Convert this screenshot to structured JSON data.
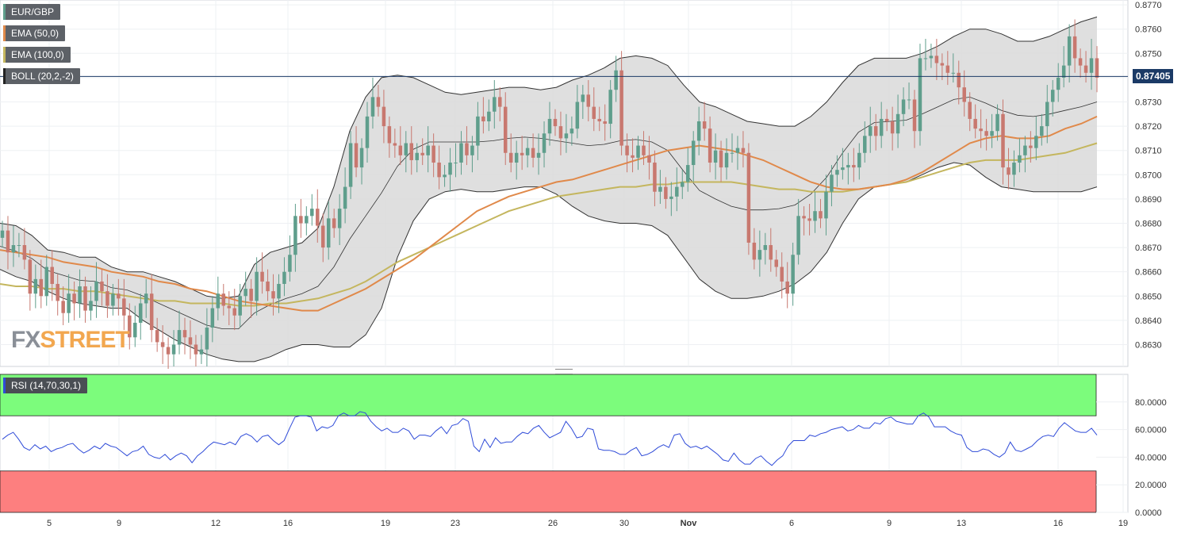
{
  "legend": {
    "symbol": "EUR/GBP",
    "ema50": "EMA (50,0)",
    "ema100": "EMA (100,0)",
    "boll": "BOLL (20,2,-2)",
    "rsi": "RSI (14,70,30,1)"
  },
  "colors": {
    "up": "#5f9e8c",
    "down": "#c8786f",
    "ema50": "#e0894a",
    "ema100": "#c4b65e",
    "boll_fill": "#d9d9d9",
    "rsi_line": "#2f4bd8",
    "rsi_overbought": "#7cfc7c",
    "rsi_oversold": "#fd7f7f",
    "price_badge": "#1b3a66"
  },
  "logo": {
    "part1": "FX",
    "part2": "STREET"
  },
  "chart_data": [
    {
      "type": "candlestick",
      "title": "EUR/GBP",
      "ylim": [
        0.8621,
        0.8772
      ],
      "y_ticks": [
        "0.8630",
        "0.8640",
        "0.8650",
        "0.8660",
        "0.8670",
        "0.8680",
        "0.8690",
        "0.8700",
        "0.8710",
        "0.8720",
        "0.8730",
        "0.8740",
        "0.8750",
        "0.8760",
        "0.8770"
      ],
      "x_ticks": [
        "5",
        "9",
        "12",
        "16",
        "19",
        "23",
        "26",
        "30",
        "Nov",
        "6",
        "9",
        "13",
        "16",
        "19"
      ],
      "current_price": "0.87405",
      "closes": [
        0.8677,
        0.8668,
        0.8671,
        0.8671,
        0.8665,
        0.8651,
        0.8657,
        0.865,
        0.8662,
        0.8655,
        0.8648,
        0.8643,
        0.8651,
        0.8647,
        0.8654,
        0.8644,
        0.8648,
        0.8656,
        0.8652,
        0.8646,
        0.8651,
        0.8649,
        0.8642,
        0.8633,
        0.8639,
        0.8647,
        0.8651,
        0.8636,
        0.8631,
        0.8629,
        0.8626,
        0.863,
        0.8636,
        0.8633,
        0.863,
        0.8626,
        0.8628,
        0.8637,
        0.8645,
        0.8651,
        0.8646,
        0.8645,
        0.8642,
        0.865,
        0.8653,
        0.8648,
        0.866,
        0.8656,
        0.8652,
        0.8649,
        0.8655,
        0.866,
        0.8667,
        0.8683,
        0.868,
        0.8683,
        0.8686,
        0.8679,
        0.867,
        0.8682,
        0.8678,
        0.8686,
        0.8695,
        0.8713,
        0.8703,
        0.8711,
        0.8724,
        0.8732,
        0.8728,
        0.872,
        0.8713,
        0.8712,
        0.8708,
        0.8713,
        0.8706,
        0.8709,
        0.8708,
        0.8712,
        0.8705,
        0.8699,
        0.87,
        0.8705,
        0.8705,
        0.8713,
        0.8708,
        0.8712,
        0.8724,
        0.8722,
        0.8726,
        0.8732,
        0.8728,
        0.8709,
        0.8705,
        0.8709,
        0.8708,
        0.8711,
        0.8707,
        0.8709,
        0.8717,
        0.8723,
        0.872,
        0.8715,
        0.8717,
        0.8719,
        0.873,
        0.8733,
        0.8728,
        0.8723,
        0.8722,
        0.8721,
        0.8735,
        0.8743,
        0.8712,
        0.8708,
        0.8707,
        0.8712,
        0.8708,
        0.8705,
        0.8693,
        0.8695,
        0.869,
        0.8691,
        0.8695,
        0.8697,
        0.8704,
        0.8714,
        0.8722,
        0.8719,
        0.8705,
        0.871,
        0.8703,
        0.8709,
        0.8709,
        0.8711,
        0.8709,
        0.8672,
        0.8665,
        0.8669,
        0.8671,
        0.8665,
        0.8662,
        0.8656,
        0.8651,
        0.8667,
        0.8683,
        0.8682,
        0.8681,
        0.8685,
        0.8682,
        0.8693,
        0.87,
        0.8702,
        0.8703,
        0.8704,
        0.8703,
        0.8709,
        0.8716,
        0.872,
        0.8716,
        0.8723,
        0.8722,
        0.8717,
        0.8725,
        0.8731,
        0.8731,
        0.8718,
        0.8748,
        0.8748,
        0.8749,
        0.8746,
        0.8745,
        0.8742,
        0.8742,
        0.8736,
        0.873,
        0.8723,
        0.8719,
        0.8718,
        0.8716,
        0.8718,
        0.8725,
        0.8703,
        0.87,
        0.8705,
        0.8708,
        0.8712,
        0.8711,
        0.8716,
        0.872,
        0.873,
        0.8735,
        0.874,
        0.8745,
        0.8757,
        0.8748,
        0.8745,
        0.8742,
        0.8748,
        0.874
      ],
      "series": [
        {
          "name": "EMA (50,0)",
          "values": [
            0.8669,
            0.8668,
            0.8667,
            0.8666,
            0.8664,
            0.8663,
            0.8662,
            0.866,
            0.8659,
            0.8658,
            0.8656,
            0.8655,
            0.8653,
            0.8652,
            0.865,
            0.8648,
            0.8647,
            0.8646,
            0.8645,
            0.8644,
            0.8644,
            0.8647,
            0.865,
            0.8653,
            0.8657,
            0.8661,
            0.8665,
            0.867,
            0.8675,
            0.868,
            0.8685,
            0.8688,
            0.8691,
            0.8693,
            0.8695,
            0.8697,
            0.8698,
            0.87,
            0.8702,
            0.8704,
            0.8706,
            0.8708,
            0.871,
            0.8711,
            0.8712,
            0.8711,
            0.871,
            0.8708,
            0.8706,
            0.8703,
            0.87,
            0.8697,
            0.8695,
            0.8694,
            0.8694,
            0.8695,
            0.8696,
            0.8698,
            0.8701,
            0.8705,
            0.8709,
            0.8713,
            0.8715,
            0.8716,
            0.8715,
            0.8715,
            0.8716,
            0.8719,
            0.8721,
            0.8724
          ]
        },
        {
          "name": "EMA (100,0)",
          "values": [
            0.8655,
            0.8654,
            0.8654,
            0.8653,
            0.8653,
            0.8652,
            0.8652,
            0.8651,
            0.865,
            0.8649,
            0.8648,
            0.8648,
            0.8647,
            0.8647,
            0.8647,
            0.8646,
            0.8646,
            0.8647,
            0.8647,
            0.8648,
            0.8649,
            0.8651,
            0.8653,
            0.8656,
            0.866,
            0.8664,
            0.8667,
            0.867,
            0.8673,
            0.8676,
            0.8679,
            0.8682,
            0.8685,
            0.8687,
            0.8689,
            0.8691,
            0.8692,
            0.8693,
            0.8694,
            0.8695,
            0.8695,
            0.8696,
            0.8696,
            0.8697,
            0.8697,
            0.8697,
            0.8697,
            0.8696,
            0.8695,
            0.8694,
            0.8694,
            0.8693,
            0.8693,
            0.8693,
            0.8694,
            0.8695,
            0.8696,
            0.8697,
            0.8699,
            0.8701,
            0.8703,
            0.8705,
            0.8706,
            0.8706,
            0.8706,
            0.8707,
            0.8708,
            0.8709,
            0.8711,
            0.8713
          ]
        },
        {
          "name": "BOLL upper",
          "values": [
            0.868,
            0.8679,
            0.8675,
            0.8669,
            0.8668,
            0.8666,
            0.8666,
            0.8662,
            0.866,
            0.866,
            0.8658,
            0.8656,
            0.8653,
            0.865,
            0.8649,
            0.865,
            0.8663,
            0.8668,
            0.867,
            0.8672,
            0.8678,
            0.8695,
            0.8718,
            0.8732,
            0.874,
            0.8741,
            0.874,
            0.8737,
            0.8734,
            0.8733,
            0.8734,
            0.8735,
            0.8736,
            0.8736,
            0.8735,
            0.8736,
            0.8739,
            0.8741,
            0.8744,
            0.8748,
            0.8749,
            0.8748,
            0.8745,
            0.8737,
            0.873,
            0.8728,
            0.8725,
            0.8722,
            0.8721,
            0.872,
            0.872,
            0.8724,
            0.873,
            0.8738,
            0.8745,
            0.8748,
            0.8748,
            0.8748,
            0.875,
            0.8753,
            0.8757,
            0.876,
            0.876,
            0.8758,
            0.8755,
            0.8755,
            0.8757,
            0.876,
            0.8763,
            0.8765
          ]
        },
        {
          "name": "BOLL lower",
          "values": [
            0.8661,
            0.8658,
            0.8656,
            0.8652,
            0.8649,
            0.8647,
            0.8646,
            0.8645,
            0.8645,
            0.864,
            0.8636,
            0.8632,
            0.8629,
            0.8626,
            0.8624,
            0.8623,
            0.8623,
            0.8625,
            0.8628,
            0.863,
            0.863,
            0.8629,
            0.8629,
            0.8634,
            0.8645,
            0.8666,
            0.8681,
            0.869,
            0.8693,
            0.8694,
            0.8693,
            0.8693,
            0.8694,
            0.8695,
            0.8695,
            0.8692,
            0.8687,
            0.8683,
            0.8681,
            0.868,
            0.868,
            0.8679,
            0.8675,
            0.8666,
            0.8657,
            0.8652,
            0.8649,
            0.8649,
            0.865,
            0.8652,
            0.8655,
            0.866,
            0.8668,
            0.868,
            0.869,
            0.8695,
            0.8696,
            0.8697,
            0.87,
            0.8703,
            0.8705,
            0.8704,
            0.8699,
            0.8695,
            0.8694,
            0.8693,
            0.8693,
            0.8693,
            0.8693,
            0.8695
          ]
        }
      ]
    },
    {
      "type": "line",
      "title": "RSI (14,70,30,1)",
      "ylim": [
        0,
        100
      ],
      "y_ticks": [
        "0.0000",
        "20.0000",
        "40.0000",
        "60.0000",
        "80.0000"
      ],
      "overbought": 70,
      "oversold": 30,
      "values": [
        53,
        56,
        58,
        53,
        47,
        45,
        49,
        46,
        48,
        44,
        46,
        47,
        49,
        50,
        46,
        43,
        45,
        48,
        46,
        50,
        48,
        47,
        44,
        41,
        44,
        45,
        48,
        42,
        40,
        39,
        42,
        38,
        41,
        43,
        41,
        36,
        41,
        44,
        48,
        51,
        50,
        49,
        51,
        49,
        55,
        57,
        55,
        51,
        55,
        56,
        52,
        49,
        52,
        61,
        69,
        70,
        70,
        69,
        59,
        62,
        61,
        63,
        70,
        72,
        70,
        70,
        73,
        72,
        66,
        62,
        59,
        61,
        58,
        58,
        61,
        59,
        53,
        56,
        56,
        55,
        59,
        62,
        57,
        63,
        64,
        68,
        66,
        48,
        44,
        53,
        47,
        54,
        50,
        51,
        51,
        55,
        58,
        57,
        61,
        63,
        58,
        54,
        56,
        58,
        66,
        61,
        54,
        55,
        61,
        60,
        46,
        45,
        45,
        44,
        42,
        42,
        45,
        47,
        41,
        42,
        44,
        47,
        49,
        47,
        56,
        57,
        50,
        47,
        48,
        46,
        48,
        45,
        42,
        38,
        37,
        43,
        38,
        35,
        35,
        39,
        41,
        37,
        34,
        38,
        41,
        48,
        52,
        52,
        52,
        56,
        55,
        57,
        58,
        60,
        61,
        62,
        59,
        60,
        63,
        61,
        61,
        65,
        64,
        68,
        69,
        66,
        65,
        64,
        64,
        70,
        72,
        69,
        62,
        62,
        62,
        59,
        57,
        56,
        47,
        44,
        44,
        46,
        45,
        42,
        40,
        43,
        51,
        45,
        44,
        46,
        48,
        52,
        55,
        56,
        55,
        61,
        65,
        62,
        59,
        58,
        58,
        61,
        56
      ]
    }
  ]
}
